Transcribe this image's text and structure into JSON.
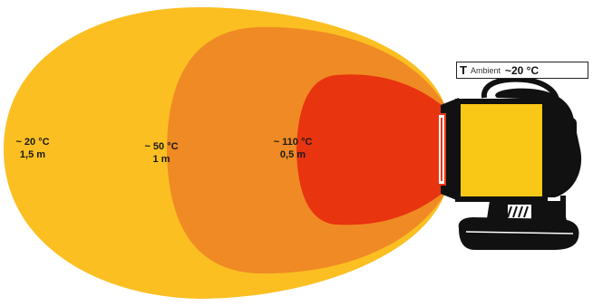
{
  "ambient": {
    "symbol": "T",
    "label": "Ambient",
    "temperature": "~20 °C"
  },
  "zones": [
    {
      "temperature": "~ 20 °C",
      "distance": "1,5 m",
      "color": "#FBBF22"
    },
    {
      "temperature": "~ 50 °C",
      "distance": "1 m",
      "color": "#F08A24"
    },
    {
      "temperature": "~ 110 °C",
      "distance": "0,5 m",
      "color": "#E8340F"
    }
  ],
  "heater": {
    "body_color": "#F9C816",
    "frame_color": "#111111",
    "icon": "infrared-heater-icon"
  }
}
